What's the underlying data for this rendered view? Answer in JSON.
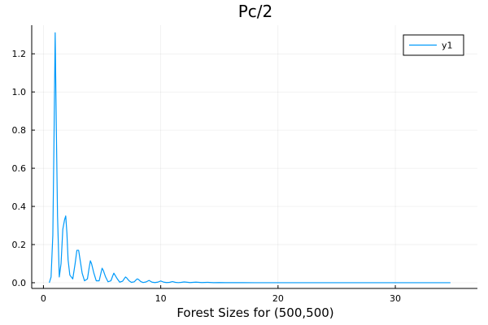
{
  "chart_data": {
    "type": "line",
    "title": "Pc/2",
    "xlabel": "Forest Sizes for (500,500)",
    "ylabel": "",
    "xlim": [
      -1,
      37
    ],
    "ylim": [
      -0.03,
      1.35
    ],
    "xticks": [
      0,
      10,
      20,
      30
    ],
    "yticks": [
      0.0,
      0.2,
      0.4,
      0.6,
      0.8,
      1.0,
      1.2
    ],
    "xtick_labels": [
      "0",
      "10",
      "20",
      "30"
    ],
    "ytick_labels": [
      "0.0",
      "0.2",
      "0.4",
      "0.6",
      "0.8",
      "1.0",
      "1.2"
    ],
    "grid": true,
    "legend_position": "top-right",
    "series": [
      {
        "name": "y1",
        "color": "#009AFA",
        "x": [
          0.5,
          0.65,
          0.8,
          0.9,
          1.0,
          1.1,
          1.2,
          1.35,
          1.5,
          1.65,
          1.8,
          1.9,
          2.0,
          2.1,
          2.25,
          2.5,
          2.7,
          2.85,
          3.0,
          3.15,
          3.3,
          3.5,
          3.75,
          3.9,
          4.0,
          4.1,
          4.3,
          4.5,
          4.75,
          4.9,
          5.0,
          5.1,
          5.3,
          5.5,
          5.75,
          5.9,
          6.0,
          6.1,
          6.3,
          6.5,
          6.75,
          6.9,
          7.0,
          7.1,
          7.3,
          7.5,
          7.75,
          7.9,
          8.0,
          8.1,
          8.3,
          8.5,
          8.75,
          9.0,
          9.25,
          9.5,
          9.75,
          10.0,
          10.25,
          10.5,
          10.75,
          11.0,
          11.25,
          11.5,
          11.75,
          12.0,
          12.5,
          13.0,
          13.5,
          14.0,
          14.5,
          15.0,
          15.5,
          16.0,
          17.0,
          18.0,
          20.0,
          22.0,
          25.0,
          28.0,
          31.0,
          34.7
        ],
        "y": [
          0.0,
          0.03,
          0.25,
          0.75,
          1.31,
          0.8,
          0.35,
          0.03,
          0.1,
          0.28,
          0.33,
          0.35,
          0.26,
          0.12,
          0.04,
          0.02,
          0.1,
          0.17,
          0.17,
          0.11,
          0.05,
          0.01,
          0.02,
          0.08,
          0.115,
          0.1,
          0.05,
          0.01,
          0.01,
          0.05,
          0.076,
          0.065,
          0.03,
          0.005,
          0.01,
          0.035,
          0.05,
          0.04,
          0.02,
          0.003,
          0.008,
          0.022,
          0.03,
          0.025,
          0.01,
          0.002,
          0.005,
          0.015,
          0.02,
          0.017,
          0.006,
          0.001,
          0.004,
          0.012,
          0.003,
          0.001,
          0.003,
          0.009,
          0.003,
          0.001,
          0.002,
          0.006,
          0.002,
          0.0005,
          0.002,
          0.004,
          0.001,
          0.003,
          0.001,
          0.002,
          0.0005,
          0.001,
          0.0003,
          0.0005,
          0.0002,
          0.0001,
          0.0,
          0.0,
          0.0,
          0.0,
          0.0,
          0.0
        ]
      }
    ]
  }
}
